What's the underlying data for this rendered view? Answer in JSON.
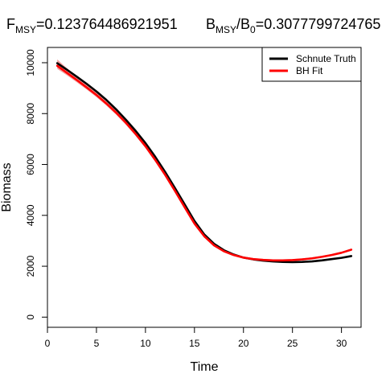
{
  "title": {
    "left": {
      "main": "F",
      "sub": "MSY",
      "rest": "=0.123764486921951"
    },
    "right": {
      "main": "B",
      "sub": "MSY",
      "slash": "/B",
      "sub2": "0",
      "rest": "=0.3077799724765"
    }
  },
  "chart_data": {
    "type": "line",
    "xlabel": "Time",
    "ylabel": "Biomass",
    "xlim": [
      0,
      32
    ],
    "ylim": [
      -400,
      10600
    ],
    "x_ticks": [
      0,
      5,
      10,
      15,
      20,
      25,
      30
    ],
    "y_ticks": [
      0,
      2000,
      4000,
      6000,
      8000,
      10000
    ],
    "legend_position": "top-right",
    "x": [
      1,
      2,
      3,
      4,
      5,
      6,
      7,
      8,
      9,
      10,
      11,
      12,
      13,
      14,
      15,
      16,
      17,
      18,
      19,
      20,
      21,
      22,
      23,
      24,
      25,
      26,
      27,
      28,
      29,
      30,
      31
    ],
    "series": [
      {
        "name": "Schnute Truth",
        "color": "#000000",
        "values": [
          9980,
          9720,
          9450,
          9170,
          8870,
          8540,
          8170,
          7760,
          7320,
          6840,
          6300,
          5710,
          5080,
          4430,
          3780,
          3250,
          2880,
          2630,
          2460,
          2340,
          2270,
          2220,
          2190,
          2170,
          2160,
          2170,
          2190,
          2230,
          2280,
          2330,
          2400
        ]
      },
      {
        "name": "BH Fit",
        "color": "#ff0000",
        "values": [
          9880,
          9600,
          9320,
          9030,
          8730,
          8400,
          8040,
          7640,
          7200,
          6720,
          6180,
          5600,
          4970,
          4320,
          3680,
          3180,
          2820,
          2590,
          2440,
          2340,
          2280,
          2250,
          2230,
          2230,
          2240,
          2270,
          2310,
          2370,
          2440,
          2530,
          2650
        ]
      }
    ],
    "band": {
      "color": "#f08080",
      "lower": [
        9760,
        9500,
        9230,
        8950,
        8650,
        8320,
        7960,
        7560,
        7120,
        6640,
        6100,
        5520,
        4890,
        4250,
        3610,
        3120,
        2780,
        2560,
        2410,
        2310,
        2250,
        2220,
        2200,
        2200,
        2210,
        2240,
        2280,
        2340,
        2410,
        2500,
        2620
      ],
      "upper": [
        10130,
        9780,
        9460,
        9140,
        8820,
        8480,
        8110,
        7710,
        7270,
        6790,
        6250,
        5670,
        5040,
        4390,
        3740,
        3240,
        2870,
        2630,
        2480,
        2380,
        2320,
        2290,
        2270,
        2270,
        2280,
        2310,
        2350,
        2410,
        2480,
        2570,
        2690
      ]
    }
  }
}
